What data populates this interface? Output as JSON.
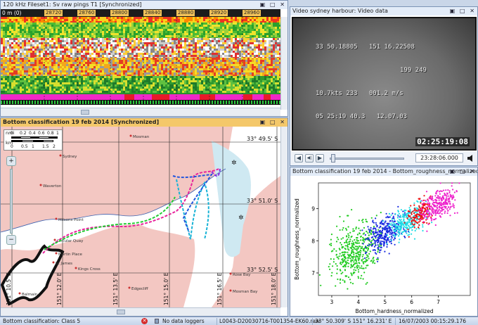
{
  "echogram": {
    "title": "120 kHz Fileset1: Sv raw pings T1 [Synchronized]",
    "window_buttons": "▣ □ ✕",
    "ruler_start": "0 m (0)",
    "ping_labels": [
      "28720",
      "28760",
      "28800",
      "28840",
      "28880",
      "28920",
      "28960"
    ]
  },
  "video": {
    "title": "Video sydney harbour: Video data",
    "window_buttons": "▣ □ ✕",
    "overlay_line1": "33 50.18805   151 16.22508",
    "overlay_line2": "199 249",
    "overlay_line3": "10.7kts 233   001.2 m/s",
    "overlay_line4": "05 25:19 40.3   12.07.03",
    "timestamp": "02:25:19:08",
    "time_field": "23:28:06.000",
    "controls": {
      "rewind": "◀",
      "step": "◀|",
      "play": "▶",
      "volume": "speaker-icon"
    }
  },
  "map": {
    "title": "Bottom classification 19 feb 2014 [Synchronized]",
    "window_buttons": "▣ □ ✕",
    "scale_nm_label": "nmi",
    "scale_nm_ticks": [
      "0",
      "0.2",
      "0.4",
      "0.6",
      "0.8",
      "1"
    ],
    "scale_km_label": "km",
    "scale_km_ticks": [
      "0",
      "0.5",
      "1",
      "1.5",
      "2"
    ],
    "lat_labels": [
      "33° 49.5' S",
      "33° 51.0' S",
      "33° 52.5' S"
    ],
    "lon_labels": [
      "151° 10.5' E",
      "151° 12.0' E",
      "151° 13.5' E",
      "151° 15.0' E",
      "151° 16.5' E",
      "151° 18.0' E"
    ],
    "places": [
      "Mosman",
      "Sydney",
      "Waverton",
      "Milsons Point",
      "Circular Quay",
      "Martin Place",
      "St James",
      "Kings Cross",
      "Edgecliff",
      "Rose Bay",
      "Balmain",
      "Mosman Bay"
    ],
    "zoom_in": "+",
    "zoom_out": "−"
  },
  "scatter": {
    "title": "Bottom classification 19 feb 2014 - Bottom_roughness_normalized v...",
    "window_buttons": "▣ □ ✕"
  },
  "chart_data": {
    "type": "scatter",
    "title": "",
    "xlabel": "Bottom_hardness_normalized",
    "ylabel": "Bottom_roughness_normalized",
    "xlim": [
      2.5,
      8.2
    ],
    "ylim": [
      6.3,
      9.8
    ],
    "xticks": [
      3,
      4,
      5,
      6,
      7
    ],
    "yticks": [
      7,
      8,
      9
    ],
    "series": [
      {
        "color": "#22cc22",
        "cx": 3.9,
        "cy": 7.7,
        "sx": 0.45,
        "sy": 0.45,
        "n": 420,
        "values": [
          [
            3.0,
            8.2
          ],
          [
            3.5,
            7.5
          ],
          [
            4.0,
            7.1
          ],
          [
            4.4,
            7.9
          ],
          [
            3.8,
            8.3
          ]
        ]
      },
      {
        "color": "#1a2be0",
        "cx": 5.0,
        "cy": 8.25,
        "sx": 0.35,
        "sy": 0.25,
        "n": 300,
        "values": [
          [
            4.7,
            8.0
          ],
          [
            5.2,
            8.4
          ],
          [
            5.5,
            8.5
          ]
        ]
      },
      {
        "color": "#22dde6",
        "cx": 5.8,
        "cy": 8.55,
        "sx": 0.33,
        "sy": 0.22,
        "n": 260,
        "values": [
          [
            5.5,
            8.3
          ],
          [
            6.0,
            8.7
          ]
        ]
      },
      {
        "color": "#ee1111",
        "cx": 6.3,
        "cy": 8.85,
        "sx": 0.25,
        "sy": 0.2,
        "n": 160,
        "values": [
          [
            6.2,
            8.7
          ],
          [
            6.5,
            9.0
          ]
        ]
      },
      {
        "color": "#ee22cc",
        "cx": 7.0,
        "cy": 9.1,
        "sx": 0.35,
        "sy": 0.22,
        "n": 260,
        "values": [
          [
            6.8,
            9.0
          ],
          [
            7.4,
            9.3
          ]
        ]
      }
    ]
  },
  "status": {
    "left": "Bottom classification: Class 5",
    "loggers": "No data loggers",
    "file": "L0043-D20030716-T001354-EK60.raw",
    "position": "33° 50.309' S 151° 16.231' E",
    "datetime": "16/07/2003 00:15:29.176"
  }
}
